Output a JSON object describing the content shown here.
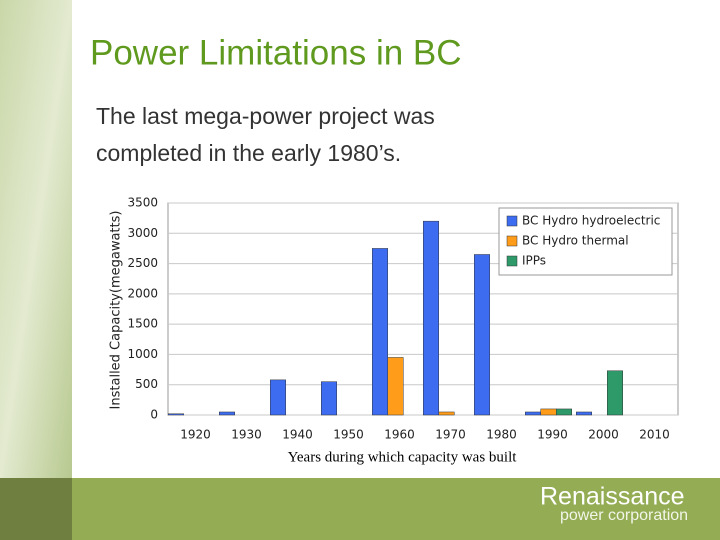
{
  "slide": {
    "title": "Power Limitations in BC",
    "body": [
      "The last mega-power project was",
      "completed in the early 1980’s."
    ],
    "logo": {
      "name": "Renaissance",
      "tagline": "power corporation"
    }
  },
  "chart_data": {
    "type": "bar",
    "y_label": "Installed Capacity(megawatts)",
    "x_label": "Years during which capacity was built",
    "categories": [
      "1920",
      "1930",
      "1940",
      "1950",
      "1960",
      "1970",
      "1980",
      "1990",
      "2000",
      "2010"
    ],
    "series": [
      {
        "name": "BC Hydro hydroelectric",
        "color": "#3d6cf0",
        "values": [
          20,
          50,
          580,
          550,
          2750,
          3200,
          2650,
          50,
          50,
          0
        ]
      },
      {
        "name": "BC Hydro thermal",
        "color": "#ff9c1a",
        "values": [
          0,
          0,
          0,
          0,
          950,
          50,
          0,
          100,
          0,
          0
        ]
      },
      {
        "name": "IPPs",
        "color": "#2e9a6a",
        "values": [
          0,
          0,
          0,
          0,
          0,
          0,
          0,
          100,
          730,
          0
        ]
      }
    ],
    "ylim": [
      0,
      3500
    ],
    "yticks": [
      0,
      500,
      1000,
      1500,
      2000,
      2500,
      3000,
      3500
    ],
    "grid": true,
    "legend": "top-right"
  }
}
